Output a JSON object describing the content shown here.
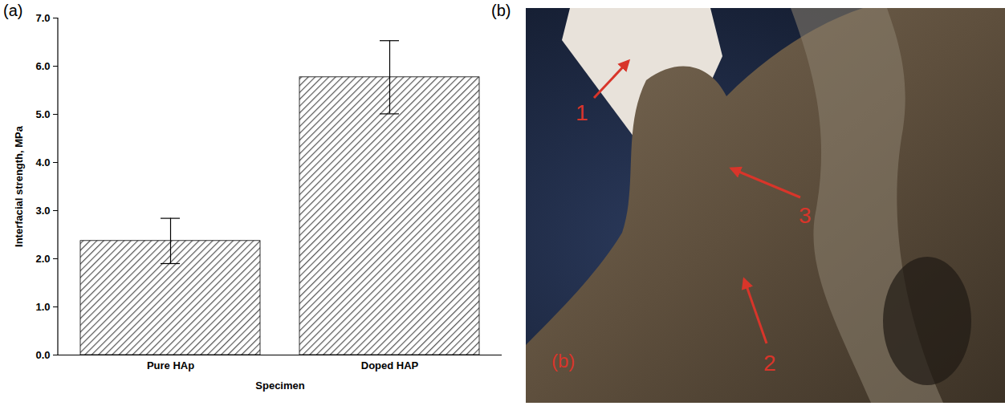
{
  "chart_data": {
    "type": "bar",
    "panel_label": "(a)",
    "x_label": "Specimen",
    "y_label": "Interfacial strength, MPa",
    "categories": [
      "Pure HAp",
      "Doped HAP"
    ],
    "values": [
      2.37,
      5.77
    ],
    "errors": [
      0.47,
      0.76
    ],
    "color": "#555555",
    "ylim": [
      0,
      7
    ],
    "yticks": [
      0,
      1,
      2,
      3,
      4,
      5,
      6,
      7
    ]
  },
  "photo": {
    "panel_label": "(b)",
    "inner_label": "(b)",
    "markers": [
      "1",
      "2",
      "3"
    ]
  }
}
